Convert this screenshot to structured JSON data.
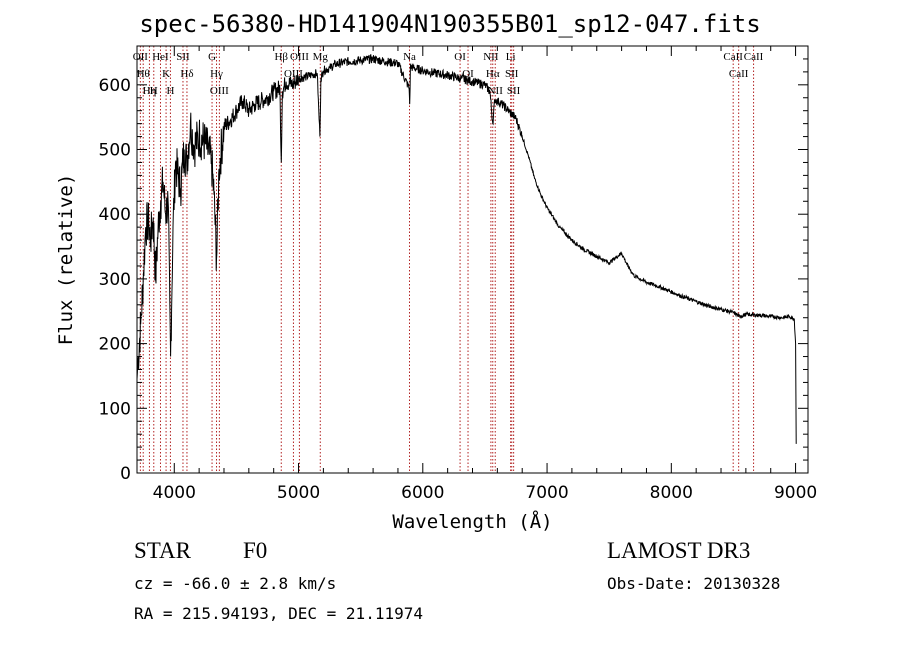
{
  "title": "spec-56380-HD141904N190355B01_sp12-047.fits",
  "footer": {
    "obj_class": "STAR",
    "subclass": "F0",
    "survey": "LAMOST DR3",
    "cz": "cz = -66.0 ± 2.8 km/s",
    "obs_date": "Obs-Date: 20130328",
    "radec": "RA = 215.94193, DEC =  21.11974"
  },
  "chart_data": {
    "type": "line",
    "title": "spec-56380-HD141904N190355B01_sp12-047.fits",
    "xlabel": "Wavelength (Å)",
    "ylabel": "Flux (relative)",
    "xlim": [
      3700,
      9100
    ],
    "ylim": [
      0,
      660
    ],
    "xticks": [
      4000,
      5000,
      6000,
      7000,
      8000,
      9000
    ],
    "yticks": [
      0,
      100,
      200,
      300,
      400,
      500,
      600
    ],
    "series": [
      {
        "name": "flux",
        "x": [
          3700,
          3710,
          3730,
          3750,
          3770,
          3790,
          3810,
          3830,
          3850,
          3870,
          3890,
          3910,
          3930,
          3950,
          3970,
          3990,
          4010,
          4050,
          4080,
          4100,
          4130,
          4160,
          4200,
          4250,
          4300,
          4320,
          4340,
          4360,
          4400,
          4450,
          4500,
          4550,
          4600,
          4650,
          4700,
          4750,
          4800,
          4850,
          4861,
          4870,
          4900,
          4950,
          5000,
          5050,
          5100,
          5150,
          5172,
          5180,
          5200,
          5250,
          5300,
          5400,
          5500,
          5600,
          5700,
          5800,
          5890,
          5895,
          5900,
          5950,
          6000,
          6100,
          6200,
          6300,
          6400,
          6500,
          6540,
          6563,
          6580,
          6600,
          6650,
          6700,
          6750,
          6800,
          6850,
          6900,
          6950,
          7000,
          7100,
          7200,
          7300,
          7400,
          7500,
          7600,
          7650,
          7700,
          7800,
          7900,
          8000,
          8100,
          8200,
          8300,
          8400,
          8500,
          8550,
          8600,
          8700,
          8800,
          8900,
          8950,
          8990,
          9000,
          9005
        ],
        "y": [
          145,
          180,
          230,
          300,
          380,
          390,
          360,
          395,
          300,
          380,
          420,
          450,
          400,
          420,
          180,
          380,
          480,
          440,
          500,
          480,
          540,
          505,
          520,
          510,
          480,
          430,
          330,
          470,
          535,
          545,
          560,
          575,
          560,
          570,
          575,
          580,
          590,
          595,
          480,
          590,
          605,
          600,
          610,
          612,
          615,
          618,
          520,
          610,
          622,
          626,
          632,
          636,
          638,
          640,
          636,
          633,
          595,
          570,
          628,
          625,
          622,
          618,
          615,
          610,
          605,
          600,
          590,
          540,
          578,
          575,
          568,
          558,
          548,
          520,
          490,
          455,
          430,
          410,
          380,
          360,
          345,
          335,
          325,
          340,
          320,
          305,
          295,
          288,
          280,
          272,
          265,
          258,
          253,
          248,
          242,
          245,
          244,
          242,
          240,
          242,
          238,
          200,
          45
        ]
      }
    ],
    "lines": [
      {
        "w": 3727,
        "label": "OII"
      },
      {
        "w": 3750,
        "label": "Hθ"
      },
      {
        "w": 3800,
        "label": "Hη"
      },
      {
        "w": 3835,
        "label": "H"
      },
      {
        "w": 3889,
        "label": "HeI"
      },
      {
        "w": 3934,
        "label": "K"
      },
      {
        "w": 3969,
        "label": "H"
      },
      {
        "w": 4070,
        "label": "SII"
      },
      {
        "w": 4102,
        "label": "Hδ"
      },
      {
        "w": 4304,
        "label": "G"
      },
      {
        "w": 4340,
        "label": "Hγ"
      },
      {
        "w": 4363,
        "label": "OIII"
      },
      {
        "w": 4861,
        "label": "Hβ"
      },
      {
        "w": 4959,
        "label": "OIII"
      },
      {
        "w": 5007,
        "label": "OIII"
      },
      {
        "w": 5175,
        "label": "Mg"
      },
      {
        "w": 5893,
        "label": "Na"
      },
      {
        "w": 6300,
        "label": "OI"
      },
      {
        "w": 6364,
        "label": "OI"
      },
      {
        "w": 6548,
        "label": "NII"
      },
      {
        "w": 6563,
        "label": "Hα"
      },
      {
        "w": 6583,
        "label": "NII"
      },
      {
        "w": 6707,
        "label": "Li"
      },
      {
        "w": 6716,
        "label": "SII"
      },
      {
        "w": 6731,
        "label": "SII"
      },
      {
        "w": 8498,
        "label": "CaII"
      },
      {
        "w": 8542,
        "label": "CaII"
      },
      {
        "w": 8662,
        "label": "CaII"
      }
    ]
  }
}
